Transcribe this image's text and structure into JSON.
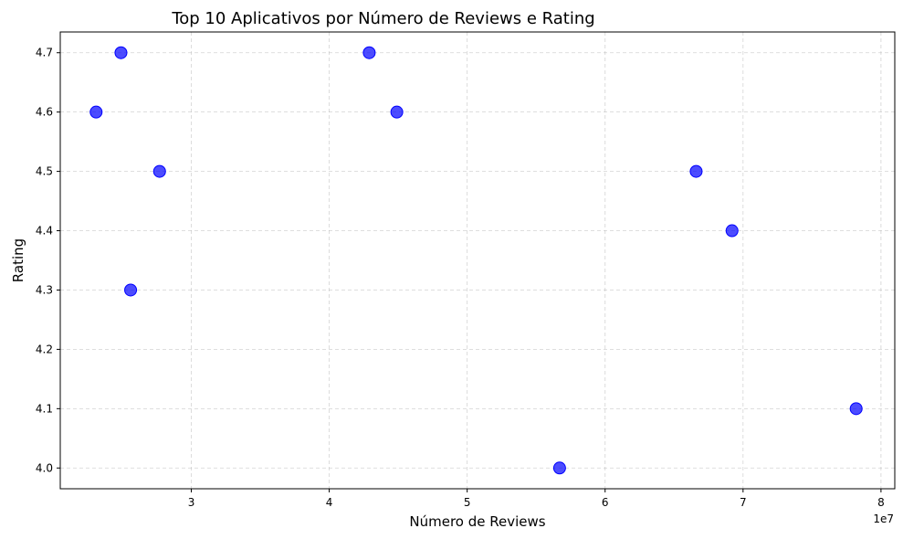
{
  "chart_data": {
    "type": "scatter",
    "title": "Top 10 Aplicativos por Número de Reviews e Rating",
    "xlabel": "Número de Reviews",
    "ylabel": "Rating",
    "x_offset_label": "1e7",
    "xlim": [
      2.05,
      8.1
    ],
    "ylim": [
      3.965,
      4.735
    ],
    "x_ticks": [
      3,
      4,
      5,
      6,
      7,
      8
    ],
    "y_ticks": [
      4.0,
      4.1,
      4.2,
      4.3,
      4.4,
      4.5,
      4.6,
      4.7
    ],
    "x_tick_labels": [
      "3",
      "4",
      "5",
      "6",
      "7",
      "8"
    ],
    "y_tick_labels": [
      "4.0",
      "4.1",
      "4.2",
      "4.3",
      "4.4",
      "4.5",
      "4.6",
      "4.7"
    ],
    "grid": true,
    "marker_color": "#0000ff",
    "points": [
      {
        "x": 2.31,
        "y": 4.6
      },
      {
        "x": 2.49,
        "y": 4.7
      },
      {
        "x": 2.56,
        "y": 4.3
      },
      {
        "x": 2.77,
        "y": 4.5
      },
      {
        "x": 4.29,
        "y": 4.7
      },
      {
        "x": 4.49,
        "y": 4.6
      },
      {
        "x": 5.67,
        "y": 4.0
      },
      {
        "x": 6.66,
        "y": 4.5
      },
      {
        "x": 6.92,
        "y": 4.4
      },
      {
        "x": 7.82,
        "y": 4.1
      }
    ]
  }
}
